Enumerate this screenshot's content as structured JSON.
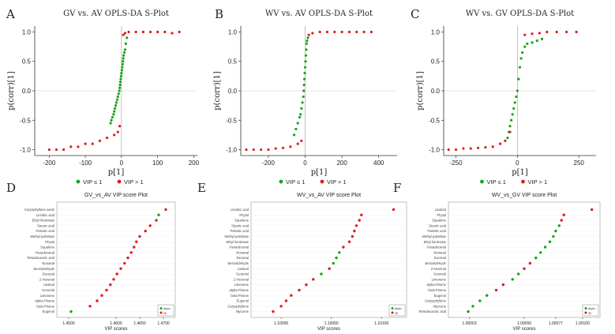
{
  "panel_letters": [
    "A",
    "B",
    "C",
    "D",
    "E",
    "F"
  ],
  "colors": {
    "vip_low": "#1aa31a",
    "vip_high": "#e01b1b",
    "axis": "#333333",
    "grid": "#cccccc"
  },
  "chart_data": [
    {
      "type": "scatter",
      "title": "GV vs. AV OPLS-DA S-Plot",
      "xlabel": "p[1]",
      "ylabel": "p(corr)[1]",
      "xlim": [
        -240,
        210
      ],
      "ylim": [
        -1.1,
        1.1
      ],
      "xticks": [
        "-200",
        "-100",
        "0",
        "100",
        "200"
      ],
      "xtick_values": [
        -200,
        -100,
        0,
        100,
        200
      ],
      "yticks": [
        "-1.0",
        "-0.5",
        "0.0",
        "0.5",
        "1.0"
      ],
      "ytick_values": [
        -1.0,
        -0.5,
        0.0,
        0.5,
        1.0
      ],
      "legend": [
        "VIP ≤ 1",
        "VIP > 1"
      ],
      "series": [
        {
          "name": "VIP ≤ 1",
          "x": [
            -30,
            -28,
            -25,
            -22,
            -20,
            -18,
            -16,
            -14,
            -12,
            -10,
            -8,
            -6,
            -5,
            -4,
            -3,
            -2,
            -1,
            0,
            1,
            2,
            3,
            4,
            5,
            6,
            8,
            10,
            12,
            15
          ],
          "y": [
            -0.55,
            -0.5,
            -0.45,
            -0.4,
            -0.35,
            -0.3,
            -0.25,
            -0.2,
            -0.15,
            -0.1,
            -0.05,
            0.0,
            0.05,
            0.1,
            0.15,
            0.2,
            0.25,
            0.3,
            0.35,
            0.4,
            0.45,
            0.5,
            0.55,
            0.6,
            0.65,
            0.7,
            0.8,
            0.9
          ]
        },
        {
          "name": "VIP > 1",
          "x": [
            -200,
            -180,
            -160,
            -140,
            -120,
            -100,
            -80,
            -60,
            -40,
            -20,
            -10,
            -5,
            5,
            10,
            20,
            40,
            60,
            80,
            100,
            120,
            140,
            160
          ],
          "y": [
            -1.0,
            -1.0,
            -1.0,
            -0.95,
            -0.95,
            -0.9,
            -0.9,
            -0.85,
            -0.8,
            -0.75,
            -0.7,
            -0.6,
            0.95,
            0.98,
            1.0,
            1.0,
            1.0,
            1.0,
            1.0,
            1.0,
            0.98,
            1.0
          ]
        }
      ]
    },
    {
      "type": "scatter",
      "title": "WV vs. AV OPLS-DA S-Plot",
      "xlabel": "p[1]",
      "ylabel": "p(corr)[1]",
      "xlim": [
        -350,
        500
      ],
      "ylim": [
        -1.1,
        1.1
      ],
      "xticks": [
        "-200",
        "0",
        "200",
        "400"
      ],
      "xtick_values": [
        -200,
        0,
        200,
        400
      ],
      "yticks": [
        "-1.0",
        "-0.5",
        "0.0",
        "0.5",
        "1.0"
      ],
      "ytick_values": [
        -1.0,
        -0.5,
        0.0,
        0.5,
        1.0
      ],
      "legend": [
        "VIP ≤ 1",
        "VIP > 1"
      ],
      "series": [
        {
          "name": "VIP ≤ 1",
          "x": [
            -60,
            -50,
            -40,
            -30,
            -25,
            -20,
            -15,
            -10,
            -8,
            -6,
            -4,
            -2,
            0,
            2,
            4,
            6,
            8,
            10,
            15
          ],
          "y": [
            -0.75,
            -0.65,
            -0.55,
            -0.45,
            -0.4,
            -0.3,
            -0.2,
            -0.1,
            0.0,
            0.1,
            0.2,
            0.3,
            0.4,
            0.5,
            0.6,
            0.7,
            0.8,
            0.85,
            0.9
          ]
        },
        {
          "name": "VIP > 1",
          "x": [
            -320,
            -280,
            -240,
            -200,
            -160,
            -120,
            -80,
            -40,
            -20,
            20,
            40,
            80,
            120,
            160,
            200,
            240,
            280,
            320,
            360
          ],
          "y": [
            -1.0,
            -1.0,
            -1.0,
            -1.0,
            -0.98,
            -0.97,
            -0.95,
            -0.9,
            -0.85,
            0.95,
            0.98,
            1.0,
            1.0,
            1.0,
            1.0,
            1.0,
            1.0,
            1.0,
            1.0
          ]
        }
      ]
    },
    {
      "type": "scatter",
      "title": "WV vs. GV OPLS-DA S-Plot",
      "xlabel": "p[1]",
      "ylabel": "p(corr)[1]",
      "xlim": [
        -300,
        320
      ],
      "ylim": [
        -1.1,
        1.1
      ],
      "xticks": [
        "-250",
        "0",
        "250"
      ],
      "xtick_values": [
        -250,
        0,
        250
      ],
      "yticks": [
        "-1.0",
        "-0.5",
        "0.0",
        "0.5",
        "1.0"
      ],
      "ytick_values": [
        -1.0,
        -0.5,
        0.0,
        0.5,
        1.0
      ],
      "legend": [
        "VIP ≤ 1",
        "VIP > 1"
      ],
      "series": [
        {
          "name": "VIP ≤ 1",
          "x": [
            -40,
            -35,
            -30,
            -25,
            -20,
            -15,
            -10,
            -5,
            0,
            5,
            10,
            15,
            20,
            30,
            40,
            60,
            80,
            100
          ],
          "y": [
            -0.8,
            -0.7,
            -0.6,
            -0.5,
            -0.4,
            -0.3,
            -0.2,
            -0.1,
            0.0,
            0.2,
            0.4,
            0.55,
            0.65,
            0.75,
            0.8,
            0.82,
            0.85,
            0.88
          ]
        },
        {
          "name": "VIP > 1",
          "x": [
            -280,
            -250,
            -220,
            -190,
            -160,
            -130,
            -100,
            -70,
            -50,
            -30,
            30,
            60,
            90,
            120,
            160,
            200,
            240
          ],
          "y": [
            -1.0,
            -1.0,
            -0.98,
            -0.98,
            -0.97,
            -0.96,
            -0.95,
            -0.9,
            -0.85,
            -0.7,
            0.95,
            0.97,
            0.98,
            1.0,
            1.0,
            1.0,
            1.0
          ]
        }
      ]
    },
    {
      "type": "scatter",
      "title": "GV_vs_AV VIP score Plot",
      "xlabel": "VIP scores",
      "xticks": [
        "1.4500",
        "1.4600",
        "1.4650",
        "1.4700"
      ],
      "xtick_values": [
        1.45,
        1.46,
        1.465,
        1.47
      ],
      "xlim": [
        1.4475,
        1.4725
      ],
      "legend": [
        "down",
        "up"
      ],
      "categories": [
        "Caryophyllene oxide",
        "Linoleic acid",
        "Ethyl linolenate",
        "Stearic acid",
        "Palmitic acid",
        "Methyl palmitate",
        "Phytol",
        "Squalene",
        "Hexadecanal",
        "Tetradecanoic acid",
        "Nonanal",
        "Benzaldehyde",
        "Decanal",
        "2-Hexenal",
        "Linalool",
        "Geraniol",
        "Limonene",
        "alpha-Pinene",
        "beta-Pinene",
        "Eugenol"
      ],
      "values": [
        1.4705,
        1.469,
        1.4685,
        1.4672,
        1.4662,
        1.465,
        1.4643,
        1.4638,
        1.4632,
        1.4625,
        1.4618,
        1.461,
        1.4602,
        1.4595,
        1.4588,
        1.458,
        1.457,
        1.456,
        1.4545,
        1.4505
      ],
      "groups": [
        "up",
        "down",
        "up",
        "up",
        "up",
        "up",
        "up",
        "up",
        "up",
        "up",
        "up",
        "up",
        "up",
        "up",
        "up",
        "up",
        "up",
        "up",
        "up",
        "down"
      ]
    },
    {
      "type": "scatter",
      "title": "WV_vs_AV VIP score Plot",
      "xlabel": "VIP scores",
      "xticks": [
        "1.10000",
        "1.10050",
        "1.10100"
      ],
      "xtick_values": [
        1.1,
        1.1005,
        1.101
      ],
      "xlim": [
        1.0997,
        1.10125
      ],
      "legend": [
        "down",
        "up"
      ],
      "categories": [
        "Linoleic acid",
        "Phytol",
        "Squalene",
        "Stearic acid",
        "Palmitic acid",
        "Methyl palmitate",
        "Ethyl linolenate",
        "Hexadecanal",
        "Nonanal",
        "Decanal",
        "Benzaldehyde",
        "Linalool",
        "Geraniol",
        "2-Hexenal",
        "Limonene",
        "alpha-Pinene",
        "beta-Pinene",
        "Eugenol",
        "Caryophyllene",
        "Myrcene"
      ],
      "values": [
        1.10112,
        1.1008,
        1.10078,
        1.10075,
        1.10073,
        1.10071,
        1.10068,
        1.10062,
        1.10058,
        1.10055,
        1.10052,
        1.10048,
        1.1004,
        1.10032,
        1.10025,
        1.10018,
        1.1001,
        1.10005,
        1.1,
        1.09992
      ],
      "groups": [
        "up",
        "up",
        "up",
        "up",
        "up",
        "up",
        "up",
        "up",
        "down",
        "down",
        "down",
        "up",
        "down",
        "up",
        "up",
        "up",
        "up",
        "up",
        "up",
        "up"
      ]
    },
    {
      "type": "scatter",
      "title": "WV_vs_GV VIP score Plot",
      "xlabel": "VIP scores",
      "xticks": [
        "1.00003",
        "1.00050",
        "1.00077",
        "1.00100"
      ],
      "xtick_values": [
        1.00003,
        1.0005,
        1.00077,
        1.001
      ],
      "xlim": [
        0.99985,
        1.00115
      ],
      "legend": [
        "down",
        "up"
      ],
      "categories": [
        "Linalool",
        "Phytol",
        "Squalene",
        "Stearic acid",
        "Palmitic acid",
        "Methyl palmitate",
        "Ethyl linolenate",
        "Hexadecanal",
        "Nonanal",
        "Decanal",
        "Benzaldehyde",
        "2-Hexenal",
        "Geraniol",
        "Limonene",
        "alpha-Pinene",
        "beta-Pinene",
        "Eugenol",
        "Caryophyllene",
        "Myrcene",
        "Tetradecanoic acid"
      ],
      "values": [
        1.00108,
        1.00084,
        1.00082,
        1.0008,
        1.00077,
        1.00075,
        1.00072,
        1.00068,
        1.00064,
        1.0006,
        1.00055,
        1.0005,
        1.00045,
        1.0004,
        1.00032,
        1.00026,
        1.00018,
        1.00012,
        1.00006,
        1.00002
      ],
      "groups": [
        "up",
        "up",
        "up",
        "down",
        "down",
        "down",
        "down",
        "down",
        "down",
        "down",
        "up",
        "up",
        "down",
        "down",
        "up",
        "up",
        "down",
        "down",
        "down",
        "down"
      ]
    }
  ]
}
